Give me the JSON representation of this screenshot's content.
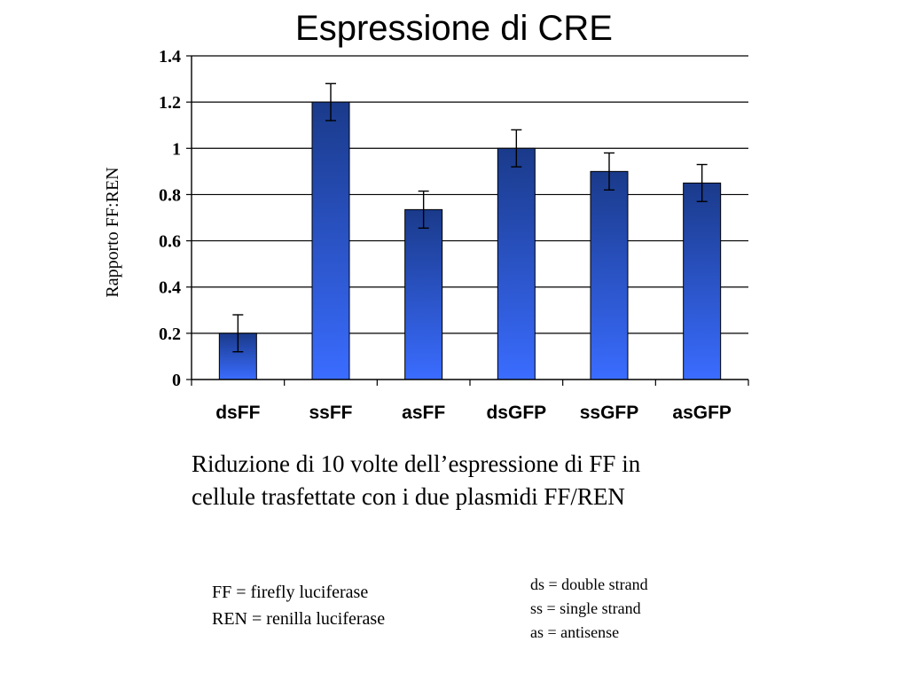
{
  "chart_data": {
    "type": "bar",
    "title": "Espressione di CRE",
    "ylabel": "Rapporto FF:REN",
    "xlabel": "",
    "categories": [
      "dsFF",
      "ssFF",
      "asFF",
      "dsGFP",
      "ssGFP",
      "asGFP"
    ],
    "values": [
      0.2,
      1.2,
      0.735,
      1.0,
      0.9,
      0.85
    ],
    "error": [
      0.08,
      0.08,
      0.08,
      0.08,
      0.08,
      0.08
    ],
    "ylim": [
      0,
      1.4
    ],
    "yticks": [
      "0",
      "0.2",
      "0.4",
      "0.6",
      "0.8",
      "1",
      "1.2",
      "1.4"
    ],
    "grid": true,
    "bar_color_top": "#1a3a8a",
    "bar_color_bottom": "#3a6cff"
  },
  "caption": {
    "line1": "Riduzione di 10 volte dell’espressione di FF in",
    "line2": "cellule trasfettate con i due plasmidi FF/REN"
  },
  "legend_left": [
    "FF = firefly luciferase",
    "REN = renilla luciferase"
  ],
  "legend_right": [
    "ds = double strand",
    "ss = single strand",
    "as = antisense"
  ]
}
